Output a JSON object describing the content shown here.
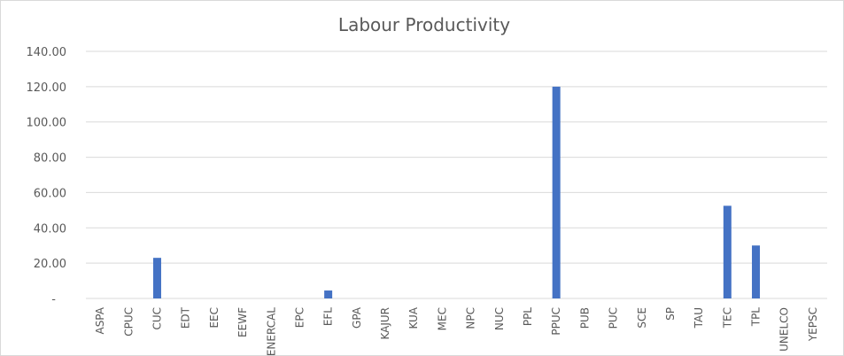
{
  "chart_data": {
    "type": "bar",
    "title": "Labour Productivity",
    "categories": [
      "ASPA",
      "CPUC",
      "CUC",
      "EDT",
      "EEC",
      "EEWF",
      "ENERCAL",
      "EPC",
      "EFL",
      "GPA",
      "KAJUR",
      "KUA",
      "MEC",
      "NPC",
      "NUC",
      "PPL",
      "PPUC",
      "PUB",
      "PUC",
      "SCE",
      "SP",
      "TAU",
      "TEC",
      "TPL",
      "UNELCO",
      "YEPSC"
    ],
    "values": [
      0,
      0,
      23,
      0,
      0,
      0,
      0,
      0,
      4.5,
      0,
      0,
      0,
      0,
      0,
      0,
      0,
      120,
      0,
      0,
      0,
      0,
      0,
      52.5,
      30,
      0,
      0
    ],
    "ylim": [
      0,
      140
    ],
    "yticks": [
      0,
      20,
      40,
      60,
      80,
      100,
      120,
      140
    ],
    "ytick_labels": [
      "-",
      "20.00",
      "40.00",
      "60.00",
      "80.00",
      "100.00",
      "120.00",
      "140.00"
    ],
    "grid": true,
    "bar_color": "#4472c4"
  }
}
